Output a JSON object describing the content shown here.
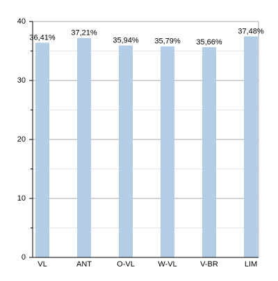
{
  "chart_data": {
    "type": "bar",
    "categories": [
      "VL",
      "ANT",
      "O-VL",
      "W-VL",
      "V-BR",
      "LIM"
    ],
    "values": [
      36.41,
      37.21,
      35.94,
      35.79,
      35.66,
      37.48
    ],
    "value_labels": [
      "36,41%",
      "37,21%",
      "35,94%",
      "35,79%",
      "35,66%",
      "37,48%"
    ],
    "color": "#b3cde6",
    "ylim": [
      0,
      40
    ],
    "yticks": [
      0,
      10,
      20,
      30,
      40
    ],
    "minor_yticks": [
      5,
      15,
      25,
      35
    ],
    "grid": true
  }
}
